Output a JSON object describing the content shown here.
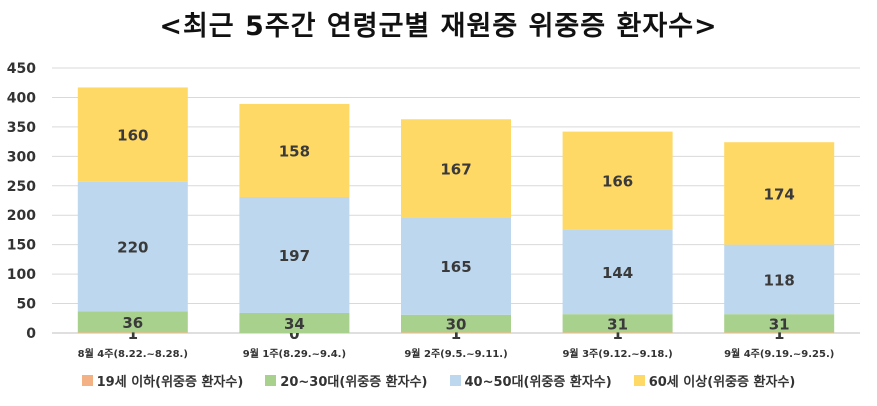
{
  "chart_data": {
    "type": "bar",
    "stacked": true,
    "title": "<최근 5주간 연령군별 재원중 위중증 환자수>",
    "categories": [
      "8월 4주(8.22.~8.28.)",
      "9월 1주(8.29.~9.4.)",
      "9월 2주(9.5.~9.11.)",
      "9월 3주(9.12.~9.18.)",
      "9월 4주(9.19.~9.25.)"
    ],
    "series": [
      {
        "name": "19세 이하(위중증 환자수)",
        "color": "#f4b183",
        "values": [
          1,
          0,
          1,
          1,
          1
        ]
      },
      {
        "name": "20~30대(위중증 환자수)",
        "color": "#a9d18e",
        "values": [
          36,
          34,
          30,
          31,
          31
        ]
      },
      {
        "name": "40~50대(위중증 환자수)",
        "color": "#bdd7ee",
        "values": [
          220,
          197,
          165,
          144,
          118
        ]
      },
      {
        "name": "60세 이상(위중증 환자수)",
        "color": "#ffd966",
        "values": [
          160,
          158,
          167,
          166,
          174
        ]
      }
    ],
    "ylim": [
      0,
      450
    ],
    "yticks": [
      "0",
      "50",
      "100",
      "150",
      "200",
      "250",
      "300",
      "350",
      "400",
      "450"
    ],
    "grid": true,
    "legend_position": "bottom"
  }
}
